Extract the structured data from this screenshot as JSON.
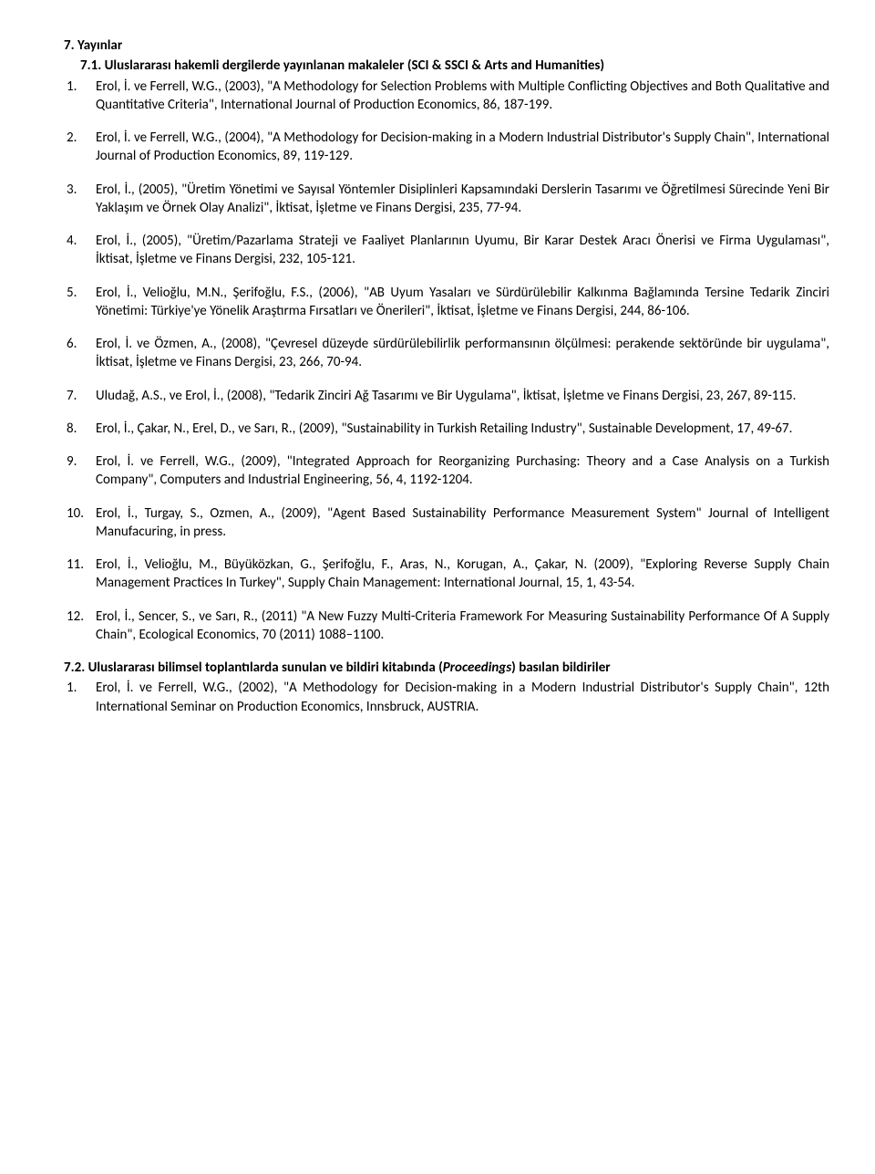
{
  "section7": {
    "label": "7.   Yayınlar"
  },
  "section71": {
    "label": "7.1. Uluslararası hakemli dergilerde yayınlanan makaleler (SCI & SSCI & Arts and Humanities)"
  },
  "entries": [
    {
      "num": "1.",
      "text": "Erol, İ. ve Ferrell, W.G., (2003), \"A Methodology for Selection Problems with Multiple Conflicting Objectives and Both Qualitative and Quantitative Criteria\", International Journal of Production Economics, 86, 187-199."
    },
    {
      "num": "2.",
      "text": "Erol, İ. ve Ferrell, W.G., (2004), \"A Methodology for Decision-making in a Modern Industrial Distributor's Supply Chain\", International Journal of Production Economics, 89, 119-129."
    },
    {
      "num": "3.",
      "text": "Erol, İ., (2005), \"Üretim Yönetimi ve Sayısal Yöntemler Disiplinleri Kapsamındaki Derslerin Tasarımı ve  Öğretilmesi Sürecinde Yeni Bir Yaklaşım ve Örnek Olay Analizi\",  İktisat, İşletme ve Finans Dergisi, 235, 77-94."
    },
    {
      "num": "4.",
      "text": "Erol, İ., (2005), \"Üretim/Pazarlama Strateji ve Faaliyet Planlarının Uyumu, Bir Karar Destek Aracı Önerisi ve Firma Uygulaması\", İktisat, İşletme ve Finans Dergisi, 232, 105-121."
    },
    {
      "num": "5.",
      "text": "Erol, İ., Velioğlu, M.N., Şerifoğlu, F.S., (2006), \"AB Uyum Yasaları ve Sürdürülebilir Kalkınma Bağlamında Tersine Tedarik Zinciri Yönetimi: Türkiye'ye Yönelik Araştırma Fırsatları ve Önerileri\", İktisat, İşletme ve Finans Dergisi, 244, 86-106."
    },
    {
      "num": "6.",
      "text": "Erol, İ. ve Özmen, A., (2008), \"Çevresel düzeyde sürdürülebilirlik performansının ölçülmesi: perakende sektöründe bir uygulama\", İktisat, İşletme ve Finans Dergisi, 23, 266, 70-94."
    },
    {
      "num": "7.",
      "text": "Uludağ, A.S., ve Erol, İ., (2008), \"Tedarik Zinciri Ağ Tasarımı ve Bir Uygulama\", İktisat, İşletme ve Finans Dergisi, 23, 267, 89-115."
    },
    {
      "num": "8.",
      "text": "Erol, İ., Çakar, N., Erel, D., ve Sarı, R., (2009), \"Sustainability in Turkish Retailing Industry\", Sustainable Development,  17, 49-67."
    },
    {
      "num": "9.",
      "text": "Erol, İ. ve Ferrell, W.G., (2009), \"Integrated Approach for Reorganizing Purchasing: Theory and a Case Analysis on a Turkish Company\", Computers and Industrial Engineering, 56, 4, 1192-1204."
    },
    {
      "num": "10.",
      "text": "Erol, İ., Turgay, S., Ozmen, A., (2009), \"Agent Based Sustainability Performance Measurement System\" Journal of Intelligent Manufacuring, in press."
    },
    {
      "num": "11.",
      "text": "Erol, İ., Velioğlu, M., Büyüközkan, G., Şerifoğlu, F., Aras, N., Korugan, A., Çakar, N. (2009), \"Exploring Reverse Supply Chain Management Practices In Turkey\", Supply Chain Management: International Journal, 15, 1, 43-54."
    },
    {
      "num": "12.",
      "text": "Erol, İ., Sencer, S., ve Sarı, R., (2011) \"A New Fuzzy Multi-Criteria Framework For Measuring Sustainability Performance Of A Supply Chain\", Ecological Economics, 70 (2011) 1088–1100."
    }
  ],
  "section72": {
    "label": "7.2. Uluslararası bilimsel toplantılarda sunulan ve bildiri kitabında (",
    "italic": "Proceedings",
    "after": ") basılan   bildiriler"
  },
  "entries72": [
    {
      "num": "1.",
      "text": "Erol, İ. ve Ferrell, W.G., (2002), \"A Methodology for Decision-making in a Modern Industrial Distributor's Supply Chain\", 12th International Seminar on Production Economics, Innsbruck, AUSTRIA."
    }
  ]
}
